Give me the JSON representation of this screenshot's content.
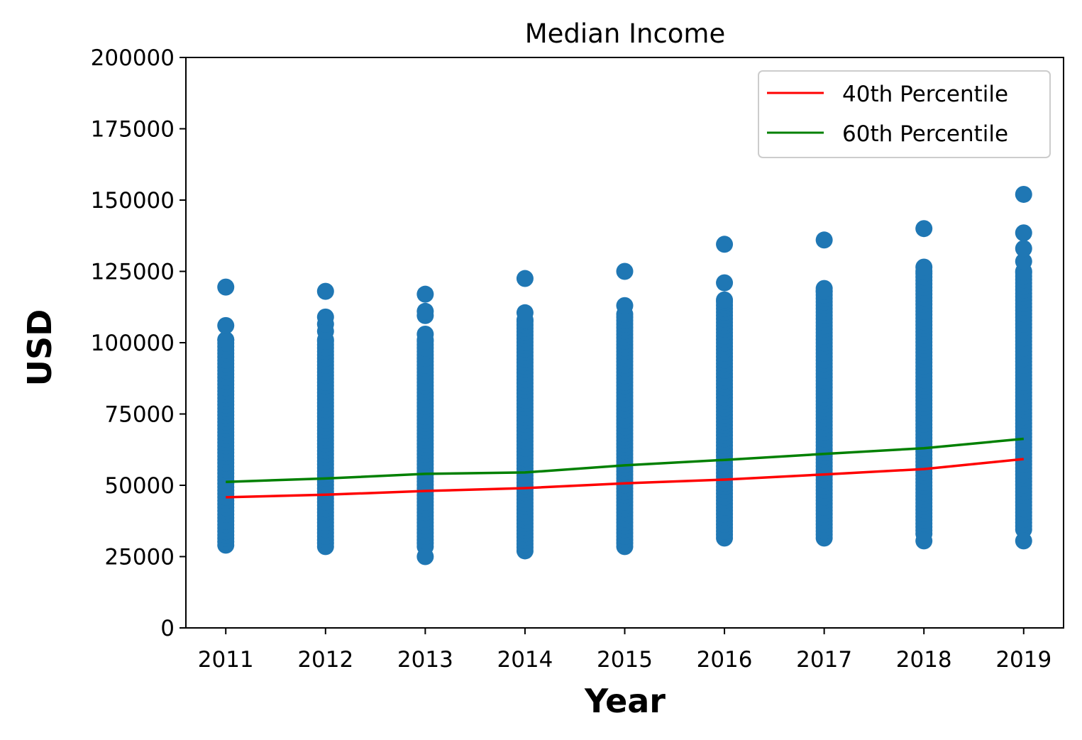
{
  "chart_data": {
    "type": "scatter",
    "title": "Median Income",
    "xlabel": "Year",
    "ylabel": "USD",
    "x_ticks": [
      "2011",
      "2012",
      "2013",
      "2014",
      "2015",
      "2016",
      "2017",
      "2018",
      "2019"
    ],
    "y_ticks": [
      "0",
      "25000",
      "50000",
      "75000",
      "100000",
      "125000",
      "150000",
      "175000",
      "200000"
    ],
    "xlim": [
      2010.6,
      2019.4
    ],
    "ylim": [
      0,
      200000
    ],
    "grid": false,
    "legend_position": "top-right",
    "scatter_color": "#1f77b4",
    "scatter": [
      {
        "year": 2011,
        "continuous_range": [
          29000,
          101000
        ],
        "isolated": [
          106000,
          119500
        ]
      },
      {
        "year": 2012,
        "continuous_range": [
          28500,
          101000
        ],
        "isolated": [
          104000,
          106500,
          109000,
          118000
        ]
      },
      {
        "year": 2013,
        "continuous_range": [
          28500,
          101000
        ],
        "isolated": [
          25000,
          103000,
          109500,
          111000,
          117000
        ]
      },
      {
        "year": 2014,
        "continuous_range": [
          27000,
          108000
        ],
        "isolated": [
          110500,
          122500
        ]
      },
      {
        "year": 2015,
        "continuous_range": [
          28500,
          110000
        ],
        "isolated": [
          113000,
          125000
        ]
      },
      {
        "year": 2016,
        "continuous_range": [
          31500,
          115000
        ],
        "isolated": [
          121000,
          134500
        ]
      },
      {
        "year": 2017,
        "continuous_range": [
          31500,
          118000
        ],
        "isolated": [
          119000,
          136000
        ]
      },
      {
        "year": 2018,
        "continuous_range": [
          33000,
          125000
        ],
        "isolated": [
          30500,
          126500,
          140000
        ]
      },
      {
        "year": 2019,
        "continuous_range": [
          34500,
          125000
        ],
        "isolated": [
          30500,
          128500,
          133000,
          138500,
          152000
        ]
      }
    ],
    "series": [
      {
        "name": "40th Percentile",
        "color": "#ff0000",
        "x": [
          2011,
          2012,
          2013,
          2014,
          2015,
          2016,
          2017,
          2018,
          2019
        ],
        "values": [
          45800,
          46700,
          48000,
          49000,
          50700,
          52000,
          53800,
          55700,
          59200
        ]
      },
      {
        "name": "60th Percentile",
        "color": "#008000",
        "x": [
          2011,
          2012,
          2013,
          2014,
          2015,
          2016,
          2017,
          2018,
          2019
        ],
        "values": [
          51200,
          52400,
          54000,
          54500,
          57000,
          58900,
          61000,
          63000,
          66300
        ]
      }
    ]
  }
}
